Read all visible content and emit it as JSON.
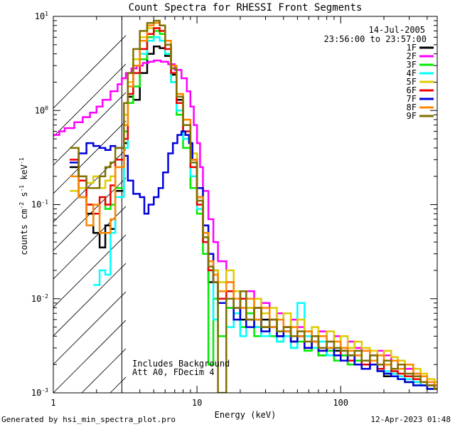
{
  "chart_data": {
    "type": "line",
    "title": "Count Spectra for RHESSI Front Segments",
    "xlabel": "Energy (keV)",
    "ylabel_parts": [
      "counts cm",
      "-2",
      " s",
      "-1",
      " keV",
      "-1"
    ],
    "x_scale": "log",
    "y_scale": "log",
    "xlim": [
      1,
      470
    ],
    "ylim": [
      0.001,
      10
    ],
    "x_ticks": [
      1,
      10,
      100
    ],
    "x_tick_labels": [
      "1",
      "10",
      "100"
    ],
    "y_tick_labels": [
      "10^-3",
      "10^-2",
      "10^-1",
      "10^0",
      "10^1"
    ],
    "tick_base": "10",
    "y_tick_exponents": [
      "-3",
      "-2",
      "-1",
      "0",
      "1"
    ],
    "date": "14-Jul-2005",
    "time_range": "23:56:00 to 23:57:00",
    "annotations": [
      "Includes Background",
      "Att A0, FDecim 4"
    ],
    "hatched_region": [
      1,
      3
    ],
    "series": [
      {
        "name": "1F",
        "color": "#000000",
        "x": [
          1.3,
          1.5,
          1.7,
          1.9,
          2.1,
          2.3,
          2.5,
          2.7,
          3.1,
          3.3,
          3.6,
          4.0,
          4.5,
          5.0,
          5.5,
          6.0,
          6.6,
          7.2,
          8.0,
          9.0,
          10,
          11,
          12,
          13,
          14,
          16,
          18,
          20,
          22,
          25,
          28,
          32,
          36,
          40,
          45,
          50,
          56,
          63,
          70,
          80,
          90,
          100,
          112,
          125,
          140,
          160,
          180,
          200,
          225,
          250,
          280,
          320,
          360,
          400,
          450
        ],
        "y": [
          0.25,
          0.12,
          0.08,
          0.05,
          0.035,
          0.06,
          0.055,
          0.14,
          0.45,
          1.4,
          1.3,
          2.5,
          4.0,
          4.8,
          4.6,
          3.8,
          2.4,
          1.3,
          0.7,
          0.3,
          0.12,
          0.05,
          0.015,
          0.02,
          0.01,
          0.008,
          0.012,
          0.006,
          0.008,
          0.005,
          0.006,
          0.005,
          0.004,
          0.0045,
          0.0035,
          0.004,
          0.003,
          0.0035,
          0.0025,
          0.003,
          0.0028,
          0.0025,
          0.002,
          0.0022,
          0.0018,
          0.002,
          0.0018,
          0.0015,
          0.0015,
          0.0014,
          0.0013,
          0.0013,
          0.0012,
          0.0012,
          0.0011
        ]
      },
      {
        "name": "2F",
        "color": "#ff00ff",
        "x": [
          1.0,
          1.1,
          1.2,
          1.4,
          1.6,
          1.8,
          2.0,
          2.2,
          2.5,
          2.8,
          3.0,
          3.2,
          3.5,
          3.8,
          4.2,
          4.6,
          5.0,
          5.6,
          6.3,
          7.0,
          7.8,
          8.5,
          9.0,
          9.5,
          10,
          10.5,
          11,
          12,
          13,
          14,
          16,
          18,
          20,
          22,
          25,
          28,
          32,
          36,
          40,
          45,
          50,
          56,
          63,
          70,
          80,
          90,
          100,
          112,
          125,
          140,
          160,
          180,
          200,
          225,
          250,
          280,
          320,
          360,
          400,
          450
        ],
        "y": [
          0.55,
          0.6,
          0.65,
          0.75,
          0.85,
          0.95,
          1.1,
          1.3,
          1.6,
          1.9,
          2.2,
          2.5,
          2.8,
          3.0,
          3.2,
          3.3,
          3.4,
          3.3,
          3.1,
          2.7,
          2.2,
          1.6,
          1.1,
          0.7,
          0.45,
          0.25,
          0.14,
          0.07,
          0.04,
          0.025,
          0.015,
          0.012,
          0.01,
          0.012,
          0.008,
          0.009,
          0.006,
          0.007,
          0.005,
          0.006,
          0.005,
          0.0045,
          0.004,
          0.0045,
          0.0035,
          0.004,
          0.003,
          0.0035,
          0.003,
          0.0028,
          0.0025,
          0.0028,
          0.0025,
          0.0022,
          0.002,
          0.0018,
          0.0016,
          0.0015,
          0.0013,
          0.0012
        ]
      },
      {
        "name": "3F",
        "color": "#00ee00",
        "x": [
          2.1,
          2.3,
          2.5,
          2.7,
          3.1,
          3.3,
          3.6,
          4.0,
          4.5,
          5.0,
          5.5,
          6.0,
          6.6,
          7.2,
          8.0,
          9.0,
          10,
          11,
          12,
          13,
          14,
          16,
          18,
          20,
          22,
          25,
          28,
          32,
          36,
          40,
          45,
          50,
          56,
          63,
          70,
          80,
          90,
          100,
          112,
          125,
          140,
          160,
          180,
          200,
          225,
          250,
          280,
          320,
          360,
          400,
          450
        ],
        "y": [
          0.12,
          0.09,
          0.1,
          0.15,
          0.6,
          1.2,
          1.8,
          3.5,
          6.0,
          7.0,
          6.5,
          4.0,
          2.0,
          0.9,
          0.4,
          0.15,
          0.08,
          0.03,
          0.002,
          0.01,
          0.004,
          0.008,
          0.006,
          0.005,
          0.007,
          0.004,
          0.005,
          0.004,
          0.0035,
          0.004,
          0.003,
          0.0035,
          0.0028,
          0.003,
          0.0025,
          0.0028,
          0.0022,
          0.0025,
          0.002,
          0.0022,
          0.0018,
          0.002,
          0.0017,
          0.0016,
          0.0015,
          0.0014,
          0.0013,
          0.0012,
          0.0012,
          0.0011,
          0.0011
        ]
      },
      {
        "name": "4F",
        "color": "#00ffff",
        "x": [
          1.9,
          2.1,
          2.3,
          2.5,
          2.7,
          3.1,
          3.3,
          3.6,
          4.0,
          4.5,
          5.0,
          5.5,
          6.0,
          6.6,
          7.2,
          8.0,
          9.0,
          10,
          11,
          12,
          13,
          14,
          16,
          18,
          20,
          22,
          25,
          28,
          32,
          36,
          40,
          45,
          50,
          56,
          63,
          70,
          80,
          90,
          100,
          112,
          125,
          140,
          160,
          180,
          200,
          225,
          250,
          280,
          320,
          360,
          400,
          450
        ],
        "y": [
          0.014,
          0.02,
          0.018,
          0.05,
          0.12,
          0.4,
          1.5,
          2.5,
          4.0,
          5.5,
          6.0,
          5.5,
          4.0,
          2.0,
          1.0,
          0.5,
          0.2,
          0.09,
          0.04,
          0.02,
          0.006,
          0.01,
          0.005,
          0.007,
          0.004,
          0.006,
          0.005,
          0.004,
          0.005,
          0.0035,
          0.004,
          0.003,
          0.009,
          0.004,
          0.003,
          0.0035,
          0.0025,
          0.003,
          0.0028,
          0.0022,
          0.0025,
          0.002,
          0.0022,
          0.0018,
          0.0017,
          0.0016,
          0.0015,
          0.0014,
          0.0013,
          0.0012,
          0.0012,
          0.0011
        ]
      },
      {
        "name": "5F",
        "color": "#ddcc00",
        "x": [
          1.3,
          1.5,
          1.7,
          1.9,
          2.1,
          2.3,
          2.5,
          2.7,
          3.1,
          3.3,
          3.6,
          4.0,
          4.5,
          5.0,
          5.5,
          6.0,
          6.6,
          7.2,
          8.0,
          9.0,
          10,
          11,
          12,
          13,
          14,
          16,
          18,
          20,
          22,
          25,
          28,
          32,
          36,
          40,
          45,
          50,
          56,
          63,
          70,
          80,
          90,
          100,
          112,
          125,
          140,
          160,
          180,
          200,
          225,
          250,
          280,
          320,
          360,
          400,
          450
        ],
        "y": [
          0.14,
          0.15,
          0.17,
          0.2,
          0.15,
          0.18,
          0.2,
          0.25,
          0.9,
          2.0,
          3.5,
          6.0,
          7.5,
          7.5,
          7.0,
          5.0,
          3.0,
          1.5,
          0.8,
          0.35,
          0.15,
          0.06,
          0.03,
          0.02,
          0.015,
          0.02,
          0.012,
          0.01,
          0.008,
          0.01,
          0.007,
          0.008,
          0.006,
          0.007,
          0.005,
          0.006,
          0.0045,
          0.005,
          0.004,
          0.0045,
          0.0035,
          0.004,
          0.003,
          0.0035,
          0.003,
          0.0028,
          0.0025,
          0.0028,
          0.0024,
          0.0022,
          0.002,
          0.0018,
          0.0016,
          0.0014,
          0.0013
        ]
      },
      {
        "name": "6F",
        "color": "#ee0000",
        "x": [
          1.3,
          1.5,
          1.7,
          1.9,
          2.1,
          2.3,
          2.5,
          2.7,
          3.1,
          3.3,
          3.6,
          4.0,
          4.5,
          5.0,
          5.5,
          6.0,
          6.6,
          7.2,
          8.0,
          9.0,
          10,
          11,
          12,
          13,
          14,
          16,
          18,
          20,
          22,
          25,
          28,
          32,
          36,
          40,
          45,
          50,
          56,
          63,
          70,
          80,
          90,
          100,
          112,
          125,
          140,
          160,
          180,
          200,
          225,
          250,
          280,
          320,
          360,
          400,
          450
        ],
        "y": [
          0.3,
          0.18,
          0.1,
          0.08,
          0.12,
          0.1,
          0.16,
          0.3,
          0.5,
          1.5,
          2.5,
          4.5,
          6.5,
          7.5,
          7.0,
          4.5,
          2.5,
          1.2,
          0.6,
          0.25,
          0.1,
          0.04,
          0.02,
          0.015,
          0.01,
          0.012,
          0.008,
          0.01,
          0.006,
          0.008,
          0.005,
          0.006,
          0.004,
          0.005,
          0.0035,
          0.004,
          0.003,
          0.0035,
          0.0028,
          0.003,
          0.0025,
          0.0028,
          0.0022,
          0.0025,
          0.002,
          0.0022,
          0.0018,
          0.002,
          0.0017,
          0.0016,
          0.0015,
          0.0014,
          0.0013,
          0.0012,
          0.0011
        ]
      },
      {
        "name": "7F",
        "color": "#0000dd",
        "x": [
          1.3,
          1.5,
          1.7,
          1.9,
          2.1,
          2.3,
          2.5,
          2.7,
          3.1,
          3.3,
          3.6,
          4.0,
          4.3,
          4.6,
          5.0,
          5.4,
          5.8,
          6.3,
          6.8,
          7.3,
          7.8,
          8.3,
          8.8,
          9.3,
          10,
          11,
          12,
          13,
          14,
          16,
          18,
          20,
          22,
          25,
          28,
          32,
          36,
          40,
          45,
          50,
          56,
          63,
          70,
          80,
          90,
          100,
          112,
          125,
          140,
          160,
          180,
          200,
          225,
          250,
          280,
          320,
          360,
          400,
          450
        ],
        "y": [
          0.28,
          0.35,
          0.45,
          0.42,
          0.4,
          0.38,
          0.42,
          0.4,
          0.33,
          0.18,
          0.13,
          0.12,
          0.08,
          0.1,
          0.12,
          0.15,
          0.22,
          0.35,
          0.45,
          0.55,
          0.6,
          0.55,
          0.45,
          0.3,
          0.15,
          0.06,
          0.03,
          0.015,
          0.009,
          0.01,
          0.006,
          0.008,
          0.005,
          0.006,
          0.0045,
          0.005,
          0.004,
          0.0045,
          0.0035,
          0.004,
          0.003,
          0.0035,
          0.0028,
          0.003,
          0.0025,
          0.0022,
          0.0025,
          0.002,
          0.0018,
          0.002,
          0.0017,
          0.0016,
          0.0015,
          0.0014,
          0.0013,
          0.0012,
          0.0012,
          0.0011,
          0.0011
        ]
      },
      {
        "name": "8F",
        "color": "#ff8800",
        "x": [
          1.3,
          1.5,
          1.7,
          1.9,
          2.1,
          2.3,
          2.5,
          2.7,
          3.1,
          3.3,
          3.6,
          4.0,
          4.5,
          5.0,
          5.5,
          6.0,
          6.6,
          7.2,
          8.0,
          9.0,
          10,
          11,
          12,
          13,
          14,
          16,
          18,
          20,
          22,
          25,
          28,
          32,
          36,
          40,
          45,
          50,
          56,
          63,
          70,
          80,
          90,
          100,
          112,
          125,
          140,
          160,
          180,
          200,
          225,
          250,
          280,
          320,
          360,
          400,
          450
        ],
        "y": [
          0.2,
          0.12,
          0.06,
          0.1,
          0.05,
          0.05,
          0.07,
          0.25,
          0.7,
          1.8,
          3.0,
          5.5,
          8.0,
          8.5,
          8.0,
          5.5,
          3.0,
          1.5,
          0.8,
          0.3,
          0.12,
          0.05,
          0.025,
          0.018,
          0.012,
          0.015,
          0.01,
          0.008,
          0.01,
          0.006,
          0.008,
          0.005,
          0.006,
          0.0045,
          0.005,
          0.004,
          0.0045,
          0.0035,
          0.004,
          0.003,
          0.0035,
          0.003,
          0.0028,
          0.0025,
          0.0028,
          0.0022,
          0.0025,
          0.002,
          0.0022,
          0.0018,
          0.002,
          0.0016,
          0.0015,
          0.0013,
          0.0012
        ]
      },
      {
        "name": "9F",
        "color": "#807000",
        "x": [
          1.3,
          1.5,
          1.7,
          1.9,
          2.1,
          2.3,
          2.5,
          2.7,
          3.1,
          3.3,
          3.6,
          4.0,
          4.5,
          5.0,
          5.5,
          6.0,
          6.6,
          7.2,
          8.0,
          9.0,
          10,
          11,
          12,
          13,
          14,
          16,
          18,
          20,
          22,
          25,
          28,
          32,
          36,
          40,
          45,
          50,
          56,
          63,
          70,
          80,
          90,
          100,
          112,
          125,
          140,
          160,
          180,
          200,
          225,
          250,
          280,
          320,
          360,
          400,
          450
        ],
        "y": [
          0.4,
          0.2,
          0.15,
          0.15,
          0.2,
          0.25,
          0.28,
          0.4,
          1.2,
          2.5,
          4.5,
          7.0,
          8.5,
          9.0,
          8.0,
          5.0,
          2.8,
          1.4,
          0.7,
          0.28,
          0.11,
          0.045,
          0.022,
          0.015,
          0.001,
          0.01,
          0.008,
          0.012,
          0.006,
          0.008,
          0.005,
          0.006,
          0.0045,
          0.005,
          0.004,
          0.0045,
          0.0035,
          0.004,
          0.003,
          0.0035,
          0.003,
          0.0028,
          0.0025,
          0.0028,
          0.0022,
          0.0025,
          0.002,
          0.0022,
          0.0018,
          0.002,
          0.0016,
          0.0015,
          0.0013,
          0.0012,
          0.0011
        ]
      }
    ]
  },
  "footer": {
    "generated_by": "Generated by hsi_min_spectra_plot.pro",
    "timestamp": "12-Apr-2023 01:48"
  }
}
